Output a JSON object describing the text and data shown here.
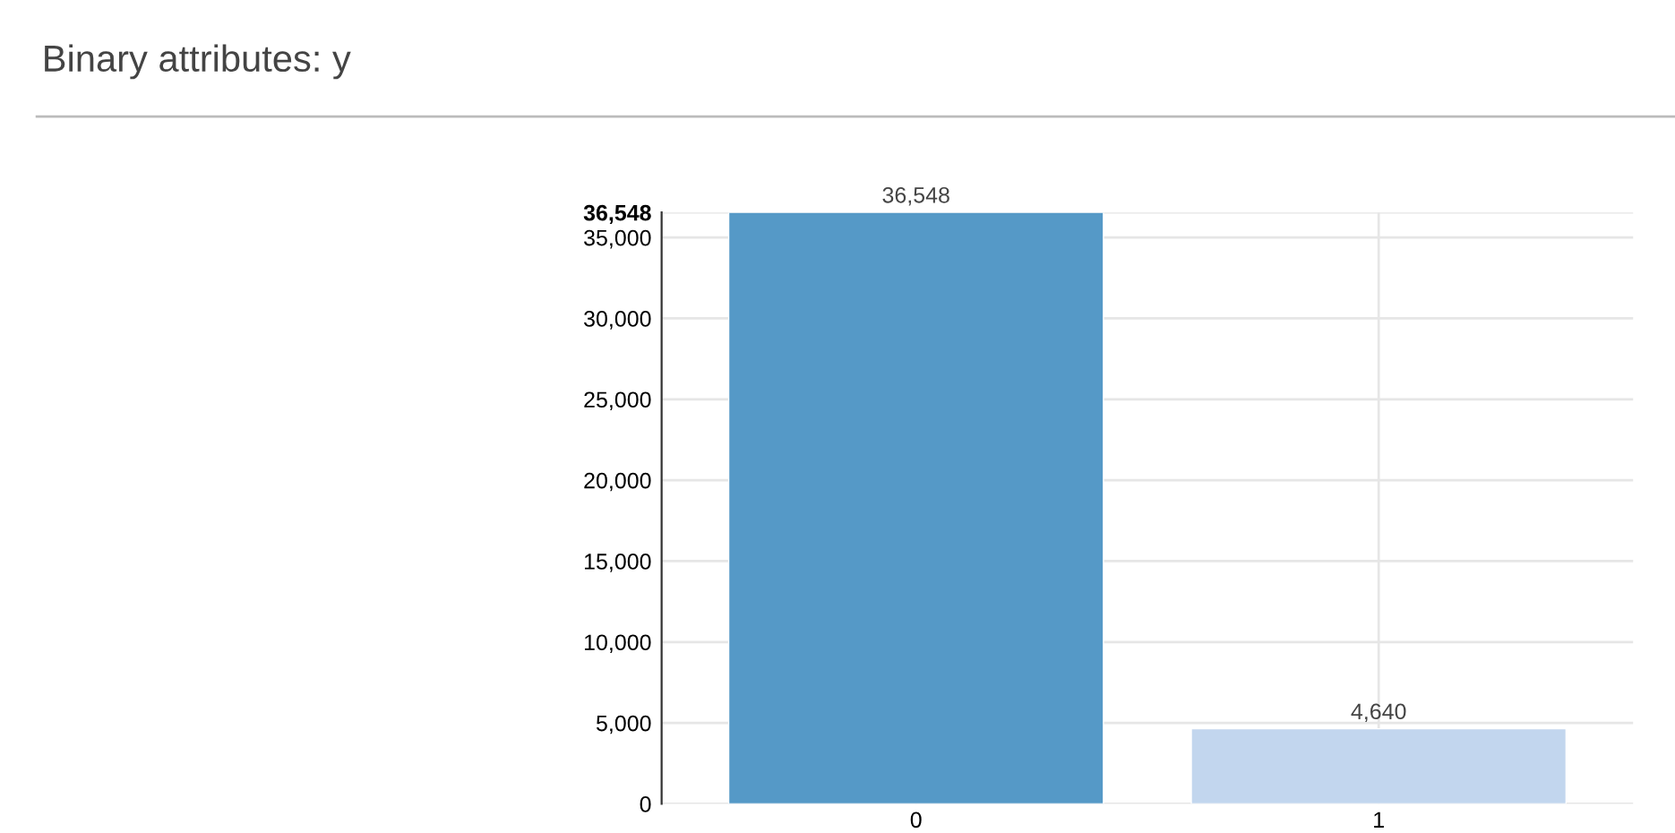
{
  "chart_data": {
    "type": "bar",
    "title": "Binary attributes: y",
    "categories": [
      "0",
      "1"
    ],
    "values": [
      36548,
      4640
    ],
    "colors": [
      "#5599c7",
      "#c2d6ee"
    ],
    "value_labels": [
      "36,548",
      "4,640"
    ],
    "ylim": [
      0,
      36548
    ],
    "yticks": [
      0,
      {
        "value": 5000,
        "label": "5,000"
      },
      {
        "value": 10000,
        "label": "10,000"
      },
      {
        "value": 15000,
        "label": "15,000"
      },
      {
        "value": 20000,
        "label": "20,000"
      },
      {
        "value": 25000,
        "label": "25,000"
      },
      {
        "value": 30000,
        "label": "30,000"
      },
      {
        "value": 35000,
        "label": "35,000"
      },
      {
        "value": 36548,
        "label": "36,548"
      }
    ],
    "grid": true
  }
}
